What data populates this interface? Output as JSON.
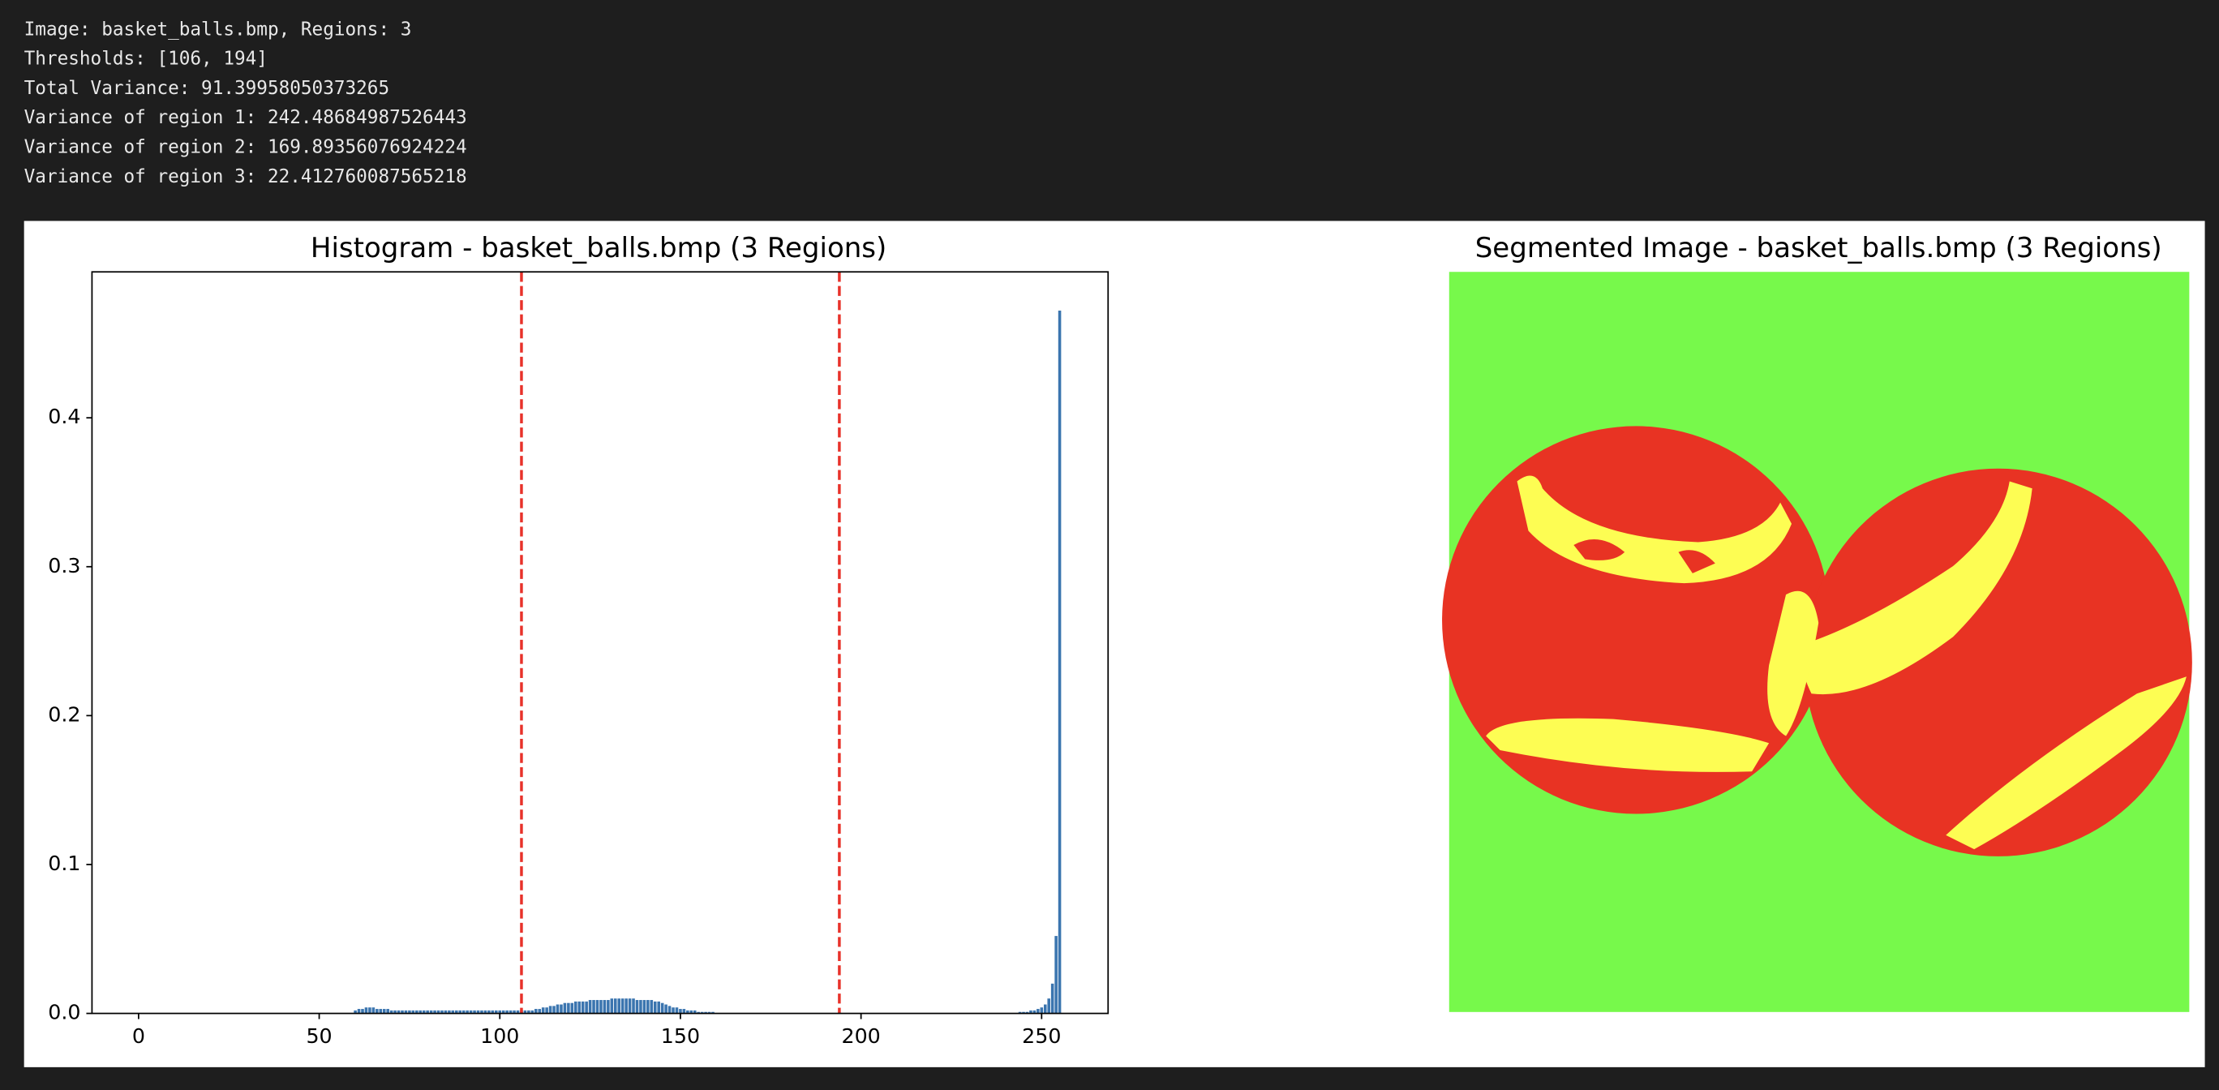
{
  "output_lines": [
    "Image: basket_balls.bmp, Regions: 3",
    "Thresholds: [106, 194]",
    "Total Variance: 91.39958050373265",
    "Variance of region 1: 242.48684987526443",
    "Variance of region 2: 169.89356076924224",
    "Variance of region 3: 22.412760087565218"
  ],
  "chart_data": [
    {
      "type": "bar",
      "title": "Histogram - basket_balls.bmp (3 Regions)",
      "color": "#3b75af",
      "x": [
        60,
        61,
        62,
        63,
        64,
        65,
        66,
        67,
        68,
        69,
        70,
        71,
        72,
        73,
        74,
        75,
        76,
        77,
        78,
        79,
        80,
        81,
        82,
        83,
        84,
        85,
        86,
        87,
        88,
        89,
        90,
        91,
        92,
        93,
        94,
        95,
        96,
        97,
        98,
        99,
        100,
        101,
        102,
        103,
        104,
        105,
        106,
        107,
        108,
        109,
        110,
        111,
        112,
        113,
        114,
        115,
        116,
        117,
        118,
        119,
        120,
        121,
        122,
        123,
        124,
        125,
        126,
        127,
        128,
        129,
        130,
        131,
        132,
        133,
        134,
        135,
        136,
        137,
        138,
        139,
        140,
        141,
        142,
        143,
        144,
        145,
        146,
        147,
        148,
        149,
        150,
        151,
        152,
        153,
        154,
        155,
        156,
        157,
        158,
        159,
        244,
        245,
        246,
        247,
        248,
        249,
        250,
        251,
        252,
        253,
        254,
        255
      ],
      "values": [
        0.002,
        0.003,
        0.003,
        0.004,
        0.004,
        0.004,
        0.003,
        0.003,
        0.003,
        0.003,
        0.002,
        0.002,
        0.002,
        0.002,
        0.002,
        0.002,
        0.002,
        0.002,
        0.002,
        0.002,
        0.002,
        0.002,
        0.002,
        0.002,
        0.002,
        0.002,
        0.002,
        0.002,
        0.002,
        0.002,
        0.002,
        0.002,
        0.002,
        0.002,
        0.002,
        0.002,
        0.002,
        0.002,
        0.002,
        0.002,
        0.002,
        0.002,
        0.002,
        0.002,
        0.002,
        0.002,
        0.002,
        0.002,
        0.002,
        0.002,
        0.003,
        0.003,
        0.004,
        0.004,
        0.005,
        0.005,
        0.006,
        0.006,
        0.007,
        0.007,
        0.007,
        0.008,
        0.008,
        0.008,
        0.008,
        0.009,
        0.009,
        0.009,
        0.009,
        0.009,
        0.009,
        0.01,
        0.01,
        0.01,
        0.01,
        0.01,
        0.01,
        0.01,
        0.009,
        0.009,
        0.009,
        0.009,
        0.009,
        0.008,
        0.008,
        0.007,
        0.006,
        0.005,
        0.004,
        0.004,
        0.003,
        0.003,
        0.002,
        0.002,
        0.002,
        0.001,
        0.001,
        0.001,
        0.001,
        0.001,
        0.001,
        0.001,
        0.001,
        0.002,
        0.002,
        0.003,
        0.004,
        0.006,
        0.01,
        0.02,
        0.052,
        0.472
      ],
      "thresholds": [
        106,
        194
      ],
      "threshold_color": "#e8322a",
      "xlim": [
        -12.9,
        268.4
      ],
      "xticks": [
        0,
        50,
        100,
        150,
        200,
        250
      ],
      "ylim": [
        0,
        0.498
      ],
      "yticks": [
        {
          "value": 0,
          "label": "0.0"
        },
        0.1,
        0.2,
        0.3,
        0.4
      ]
    },
    {
      "type": "image",
      "title": "Segmented Image - basket_balls.bmp (3 Regions)"
    }
  ]
}
